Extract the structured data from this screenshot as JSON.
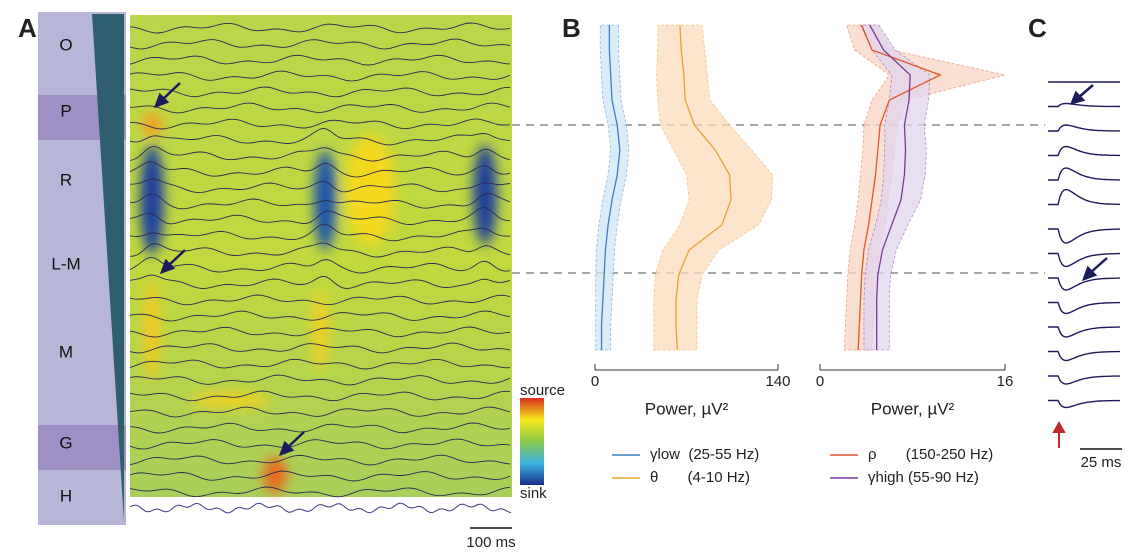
{
  "panel_labels": [
    "A",
    "B",
    "C"
  ],
  "layer_labels": [
    "O",
    "P",
    "R",
    "L-M",
    "M",
    "G",
    "H"
  ],
  "colorbar": {
    "top": "source",
    "bottom": "sink"
  },
  "scale_bars": {
    "a": "100 ms",
    "c": "25 ms"
  },
  "chart_data": [
    {
      "type": "line",
      "orientation": "vertical-depth",
      "xlabel": "Power, µV²",
      "xlim": [
        0,
        140
      ],
      "xticks": [
        0,
        140
      ],
      "categories": [
        null,
        null,
        null,
        null,
        null,
        null,
        null,
        null,
        null,
        null,
        null,
        null,
        null,
        null
      ],
      "series": [
        {
          "name": "γlow  (25-55 Hz)",
          "color": "#3a7fc1",
          "band_color": "#cfe6f5",
          "values": [
            11,
            11,
            12,
            13,
            17,
            19,
            17,
            13,
            10,
            8,
            7,
            6,
            5,
            5
          ],
          "lower": [
            4,
            4,
            5,
            6,
            10,
            12,
            10,
            6,
            3,
            1,
            0.5,
            0.5,
            0.5,
            0.5
          ],
          "upper": [
            18,
            18,
            19,
            20,
            24,
            26,
            24,
            20,
            17,
            15,
            14,
            13,
            12,
            12
          ]
        },
        {
          "name": "θ       (4-10 Hz)",
          "color": "#e8a330",
          "band_color": "#fbdcbb",
          "values": [
            65,
            66,
            68,
            69,
            76,
            92,
            103,
            104,
            97,
            72,
            64,
            62,
            62,
            63
          ],
          "lower": [
            48,
            48,
            47,
            48,
            50,
            60,
            70,
            72,
            65,
            52,
            46,
            45,
            45,
            45
          ],
          "upper": [
            82,
            84,
            86,
            88,
            103,
            120,
            136,
            135,
            125,
            95,
            82,
            78,
            78,
            78
          ]
        }
      ]
    },
    {
      "type": "line",
      "orientation": "vertical-depth",
      "xlabel": "Power, µV²",
      "xlim": [
        0,
        16
      ],
      "xticks": [
        0,
        16
      ],
      "categories": [
        null,
        null,
        null,
        null,
        null,
        null,
        null,
        null,
        null,
        null,
        null,
        null,
        null,
        null
      ],
      "series": [
        {
          "name": "ρ       (150-250 Hz)",
          "color": "#e2552c",
          "band_color": "#f9d4c4",
          "values": [
            3.6,
            4.5,
            10.4,
            6,
            5.2,
            5.0,
            4.8,
            4.5,
            4.2,
            3.8,
            3.6,
            3.5,
            3.4,
            3.3
          ],
          "lower": [
            2.3,
            3,
            6,
            4.5,
            3.8,
            3.7,
            3.5,
            3.3,
            3,
            2.6,
            2.4,
            2.3,
            2.2,
            2.1
          ],
          "upper": [
            5,
            6.2,
            16,
            7.5,
            6.7,
            6.4,
            6.2,
            5.9,
            5.6,
            5.1,
            4.9,
            4.7,
            4.6,
            4.5
          ]
        },
        {
          "name": "γhigh (55-90 Hz)",
          "color": "#7a3a9a",
          "band_color": "#e2d4ee",
          "values": [
            4.3,
            5.5,
            7.8,
            7.7,
            7.3,
            7.4,
            7.3,
            7.0,
            6.2,
            5.4,
            5.0,
            4.9,
            4.9,
            4.9
          ],
          "lower": [
            3.5,
            4.5,
            6.2,
            6,
            5.6,
            5.6,
            5.5,
            5.3,
            4.8,
            4.2,
            3.9,
            3.8,
            3.8,
            3.8
          ],
          "upper": [
            5.1,
            6.5,
            9.5,
            9.4,
            9,
            9.2,
            9.1,
            8.7,
            7.6,
            6.6,
            6.1,
            6,
            6,
            6
          ]
        }
      ]
    }
  ]
}
